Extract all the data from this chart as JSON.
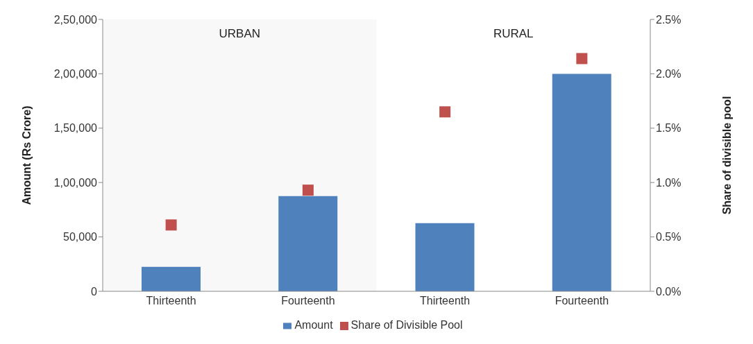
{
  "chart_data": {
    "type": "bar",
    "categories": [
      "Thirteenth",
      "Fourteenth",
      "Thirteenth",
      "Fourteenth"
    ],
    "series": [
      {
        "name": "Amount",
        "color": "#4f81bd",
        "values": [
          22500,
          87500,
          62700,
          200000
        ]
      },
      {
        "name": "Share of Divisible Pool",
        "type": "scatter",
        "axis": "y2",
        "marker": "square",
        "color": "#c0504d",
        "values": [
          0.61,
          0.93,
          1.65,
          2.14
        ]
      }
    ],
    "ylabel": "Amount (Rs Crore)",
    "y2label": "Share of divisible pool",
    "ylim": [
      0,
      250000
    ],
    "yticks": [
      {
        "value": 0,
        "label": "0"
      },
      {
        "value": 50000,
        "label": "50,000"
      },
      {
        "value": 100000,
        "label": "1,00,000"
      },
      {
        "value": 150000,
        "label": "1,50,000"
      },
      {
        "value": 200000,
        "label": "2,00,000"
      },
      {
        "value": 250000,
        "label": "2,50,000"
      }
    ],
    "y2lim": [
      0,
      2.5
    ],
    "y2ticks": [
      {
        "value": 0,
        "label": "0.0%"
      },
      {
        "value": 0.5,
        "label": "0.5%"
      },
      {
        "value": 1,
        "label": "1.0%"
      },
      {
        "value": 1.5,
        "label": "1.5%"
      },
      {
        "value": 2,
        "label": "2.0%"
      },
      {
        "value": 2.5,
        "label": "2.5%"
      }
    ],
    "bands": [
      {
        "axis": "x",
        "from": "Thirteenth",
        "to": "Fourteenth",
        "label": "URBAN",
        "color": "#f2f2f2"
      }
    ],
    "annotations": [
      "RURAL"
    ],
    "legend": "bottom"
  }
}
